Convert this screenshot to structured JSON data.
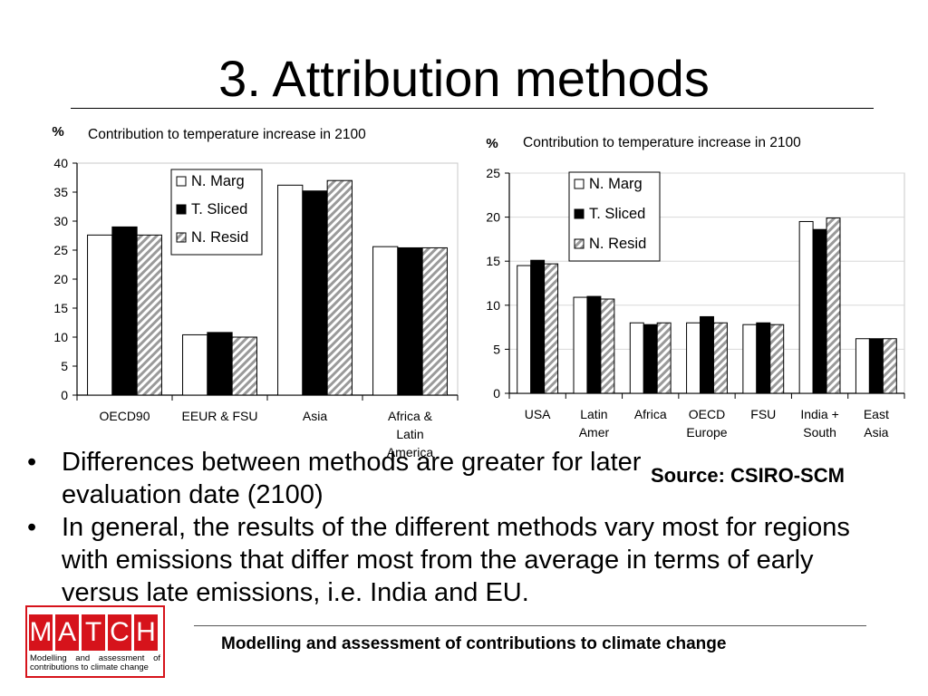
{
  "slide": {
    "title": "3. Attribution methods",
    "bullets": [
      "Differences between methods are greater for later evaluation date (2100)",
      "In general, the results of the different methods vary most for regions with emissions that differ most from the average in terms of early versus late emissions, i.e. India and EU."
    ],
    "bullet_glyph": "•",
    "source": "Source: CSIRO-SCM",
    "footer": "Modelling and assessment of contributions to climate change",
    "logo": {
      "letters": [
        "M",
        "A",
        "T",
        "C",
        "H"
      ],
      "subtitle": "Modelling and assessment of contributions to climate change"
    }
  },
  "chart_data": [
    {
      "type": "bar",
      "title": "Contribution to temperature increase in 2100",
      "ylabel": "%",
      "ylim": [
        0,
        40
      ],
      "yticks": [
        0,
        5,
        10,
        15,
        20,
        25,
        30,
        35,
        40
      ],
      "categories": [
        "OECD90",
        "EEUR & FSU",
        "Asia",
        "Africa & Latin America"
      ],
      "series": [
        {
          "name": "N. Marg",
          "values": [
            27.6,
            10.4,
            36.2,
            25.6
          ]
        },
        {
          "name": "T. Sliced",
          "values": [
            29.0,
            10.8,
            35.2,
            25.4
          ]
        },
        {
          "name": "N. Resid",
          "values": [
            27.6,
            10.0,
            37.0,
            25.4
          ]
        }
      ],
      "legend": "top-center",
      "grid": false
    },
    {
      "type": "bar",
      "title": "Contribution to temperature increase in 2100",
      "ylabel": "%",
      "ylim": [
        0,
        25
      ],
      "yticks": [
        0,
        5,
        10,
        15,
        20,
        25
      ],
      "categories": [
        "USA",
        "Latin Amer",
        "Africa",
        "OECD Europe",
        "FSU",
        "India + South",
        "East Asia"
      ],
      "series": [
        {
          "name": "N. Marg",
          "values": [
            14.5,
            10.9,
            8.0,
            8.0,
            7.8,
            19.5,
            6.2
          ]
        },
        {
          "name": "T. Sliced",
          "values": [
            15.1,
            11.0,
            7.8,
            8.7,
            8.0,
            18.6,
            6.2
          ]
        },
        {
          "name": "N. Resid",
          "values": [
            14.7,
            10.7,
            8.0,
            8.0,
            7.8,
            19.9,
            6.2
          ]
        }
      ],
      "legend": "top-left",
      "grid": true
    }
  ]
}
